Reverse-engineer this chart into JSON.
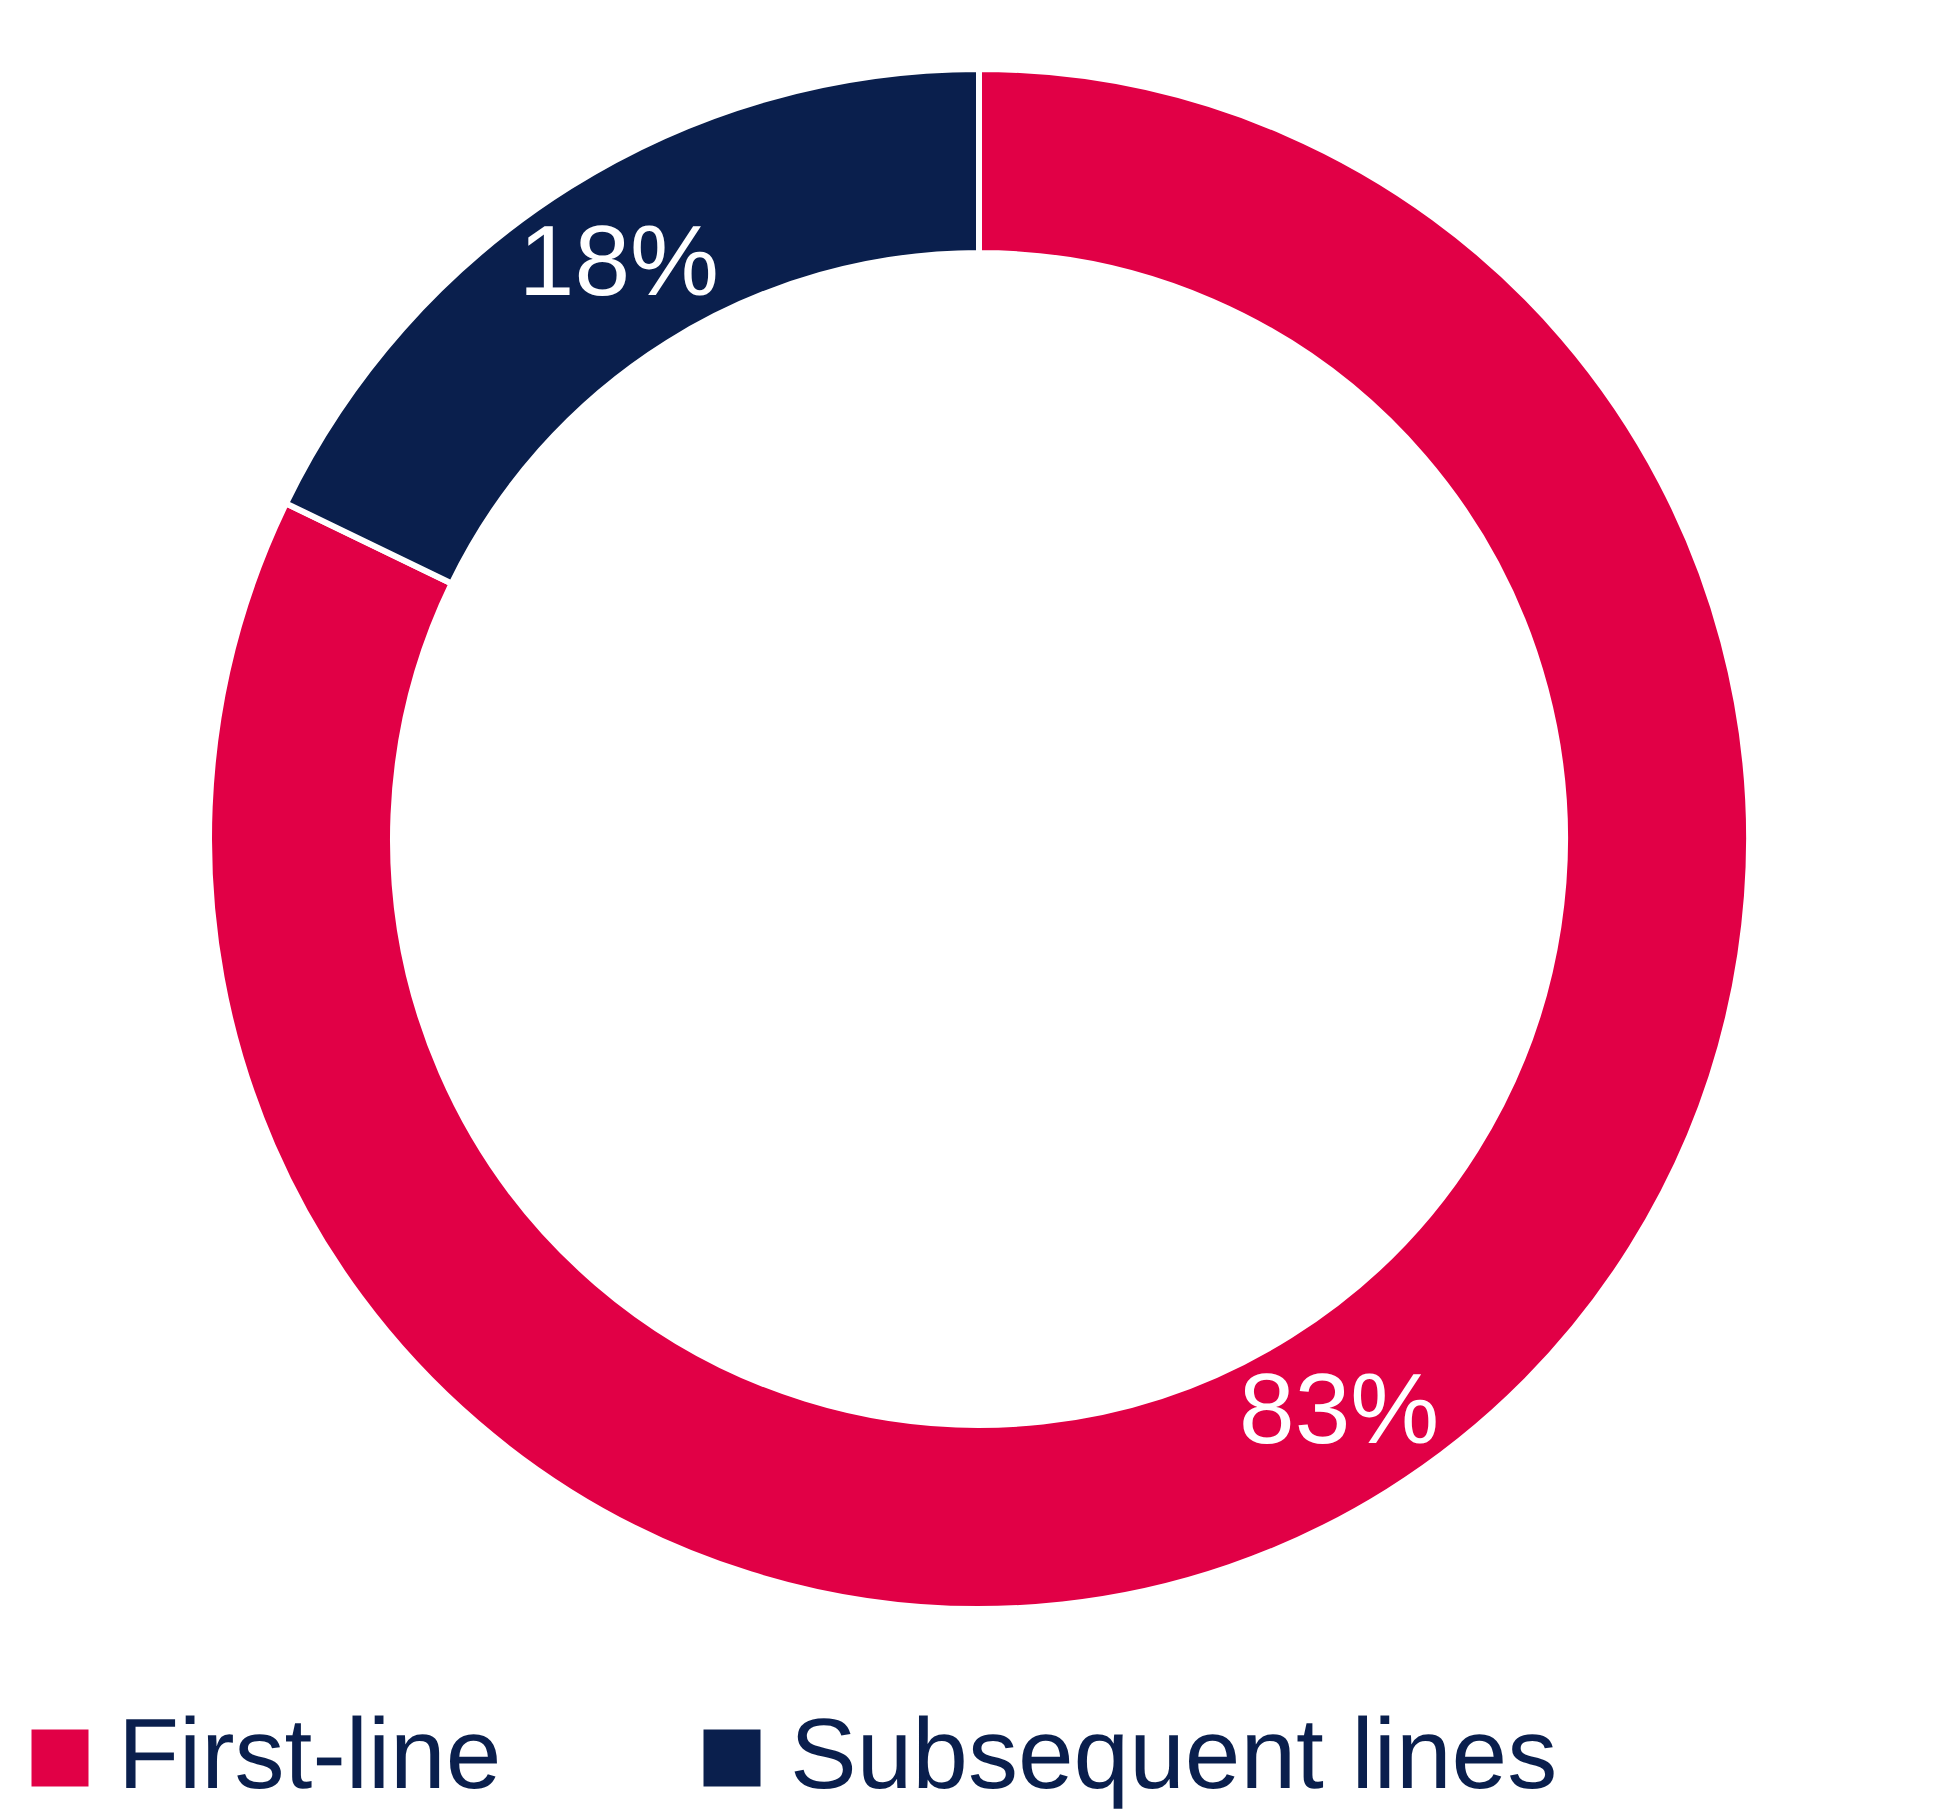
{
  "chart_data": {
    "type": "donut",
    "categories": [
      "First-line",
      "Subsequent lines"
    ],
    "values": [
      83,
      18
    ],
    "colors": [
      "#e10046",
      "#0a1f4d"
    ],
    "value_labels": [
      "83%",
      "18%"
    ],
    "legend": "bottom"
  }
}
